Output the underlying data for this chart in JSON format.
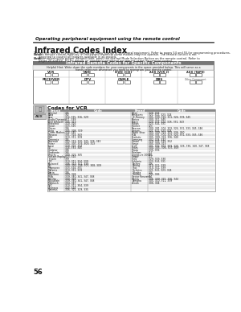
{
  "page_title": "Operating peripheral equipment using the remote control",
  "section_title": "Infrared Codes Index",
  "body_text": "The remote control is capable of operating many brands of peripheral equipment. Refer to pages 54 and 55 for programming procedures.",
  "note1_label": "Note:",
  "note1_text": "The remote control memory is limited and therefore some models may not operate. The remote control is not designed to control all features available in all models.",
  "note2_label": "Note:",
  "note2_text": "After entering the proper infrared code, press the desired Mode Selection Button on the remote control. Refer to pages 20 and 59 - 60 for details on operating peripheral equipment using the remote control.",
  "infrared_box_title": "Infrared Remote Codes for Specific Components",
  "helpful_hint": "Helpful Hint: Write down the code numbers for your components in the space provided below. This will serve as a handy reference whenever you need to reprogram your remote control.",
  "component_labels_row1": [
    "VCR",
    "DVD",
    "DVD (CD)",
    "AUX (VCR 2)",
    "AUX (TAPE)"
  ],
  "component_labels_row2": [
    "RECEIVER",
    "DTV",
    "CABLE",
    "DBS",
    "Other Component"
  ],
  "vcr_codes_title": "Codes for VCR",
  "vcr_left_brands": [
    "Admiral",
    "Aiwa",
    "Akai",
    "Audio Dynamic",
    "Bell &Howell",
    "Broksonic",
    "Canon",
    "Citizen",
    "Craig",
    "Curtis Mathes",
    "Daewoo",
    "DBX",
    "Dimensia",
    "Emerson",
    "Fisher",
    "Funai",
    "GE",
    "Goldstar",
    "Gradiente",
    "Hitachi",
    "Instant Replay",
    "Jensen",
    "JVC",
    "Kenwood",
    "LXI",
    "Magnavox",
    "Marantz",
    "Marta",
    "Memorex",
    "MGA",
    "Minolta",
    "Mitsubishi",
    "Multitech",
    "NEC",
    "Olympus",
    "Optimus"
  ],
  "vcr_left_codes": [
    "335",
    "332",
    "314, 315, 316, 329",
    "311, 339",
    "305, 313",
    "320, 326",
    "323, 325",
    "306",
    "305, 306, 329",
    "324, 345",
    "301, 324, 343",
    "310, 311, 339",
    "345",
    "303, 319, 320, 325, 326, 343",
    "305, 307, 306, 309, 313",
    "320, 326, 334",
    "324, 333, 345",
    "306",
    "334",
    "300, 323, 345",
    "323, 324",
    "339",
    "310, 311, 334, 339",
    "306, 310, 311, 339",
    "300, 305, 306, 307, 308, 309",
    "323, 324, 331",
    "310, 311, 339",
    "306",
    "309, 324",
    "339, 340, 341, 347, 348",
    "300, 345",
    "339, 340, 341, 347, 348",
    "304, 347",
    "310, 311, 304, 339",
    "323, 324",
    "306, 321, 329, 335"
  ],
  "vcr_right_brands": [
    "Orion",
    "Panasonic",
    "J.C.Penney",
    "Pentax",
    "Philco",
    "Philips",
    "Pioneer",
    "Proscan",
    "Quasar",
    "Radio Shac",
    "RCA",
    "Realistic",
    "Samsung",
    "Sansei",
    "Sanyo",
    "Scott",
    "Sears",
    "Sharp",
    "Shintom",
    "Signature 2000",
    "Singer",
    "Sony",
    "Sylvania",
    "Tashiro",
    "Tatung",
    "Teac",
    "Technics",
    "Teknika",
    "Toshiba",
    "Vector Research",
    "Wanta",
    "Yamaha",
    "Zenith"
  ],
  "vcr_right_codes": [
    "320, 326",
    "321, 322, 323, 324",
    "301, 309, 310, 311, 324, 339, 345",
    "300, 311, 345",
    "320, 323, 324, 326, 331, 343",
    "323, 324, 331",
    "323",
    "300, 301, 302, 323, 324, 331, 333, 345, 346",
    "321, 322, 323, 324",
    "305, 309, 324, 333, 336, 340",
    "300, 301, 302, 323, 324, 331, 333, 345, 346",
    "305, 309, 324, 336, 340",
    "302, 304, 333",
    "320, 326, 339, 352",
    "305, 309, 313",
    "301, 302, 304, 309, 320, 326, 336, 340, 347, 348",
    "300, 305, 306, 307, 309",
    "335, 336",
    "317",
    "335",
    "317",
    "329, 329, 330",
    "323, 324, 331",
    "306",
    "310, 311, 339",
    "310, 311, 339",
    "321, 322, 323, 324",
    "324",
    "301, 346",
    "311",
    "306, 309, 335, 336, 344",
    "305, 310, 311, 339",
    "306, 344"
  ],
  "page_number": "56",
  "bg_color": "#ffffff",
  "table_header_color": "#999999",
  "row_alt_color": "#f0f0f0"
}
